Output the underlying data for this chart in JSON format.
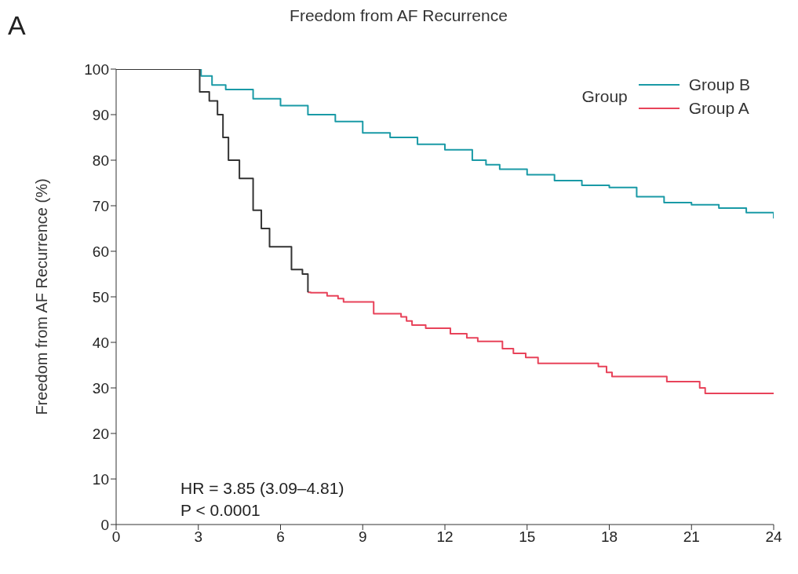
{
  "chart_data": {
    "type": "step",
    "title": "Freedom from AF Recurrence",
    "ylabel": "Freedom from AF Recurrence (%)",
    "legend_title": "Group",
    "legend": "top right",
    "grid": false,
    "marker": "none",
    "line_style": "solid",
    "xlim": [
      0,
      24
    ],
    "xticks": [
      0,
      3,
      6,
      9,
      12,
      15,
      18,
      21,
      24
    ],
    "ylim": [
      0,
      100
    ],
    "yticks": [
      0,
      10,
      20,
      30,
      40,
      50,
      60,
      70,
      80,
      90,
      100
    ],
    "annotations": [
      "A",
      "HR = 3.85 (3.09–4.81)",
      "P < 0.0001"
    ],
    "series": [
      {
        "name": "Group B",
        "color": "#1a9aa6",
        "x": [
          3,
          3.1,
          3.5,
          4,
          5,
          6,
          7,
          8,
          9,
          10,
          11,
          12,
          13,
          13.5,
          14,
          15,
          16,
          17,
          18,
          19,
          20,
          21,
          22,
          23,
          24
        ],
        "values": [
          100,
          98.5,
          96.5,
          95.5,
          93.5,
          92,
          90,
          88.5,
          86,
          85,
          83.5,
          82.3,
          80,
          79,
          78,
          76.8,
          75.5,
          74.5,
          74,
          72,
          70.7,
          70.2,
          69.5,
          68.5,
          67.2
        ]
      },
      {
        "name": "Group A",
        "color": "#e8435a",
        "x": [
          7,
          7.1,
          7.7,
          8.1,
          8.3,
          9.4,
          10.4,
          10.6,
          10.8,
          11.3,
          12.2,
          12.8,
          13.2,
          14.1,
          14.5,
          14.95,
          15.4,
          17.6,
          17.9,
          18.1,
          20.1,
          21.3,
          21.5,
          24
        ],
        "values": [
          51,
          50.9,
          50.2,
          49.6,
          48.9,
          46.3,
          45.6,
          44.7,
          43.8,
          43.1,
          41.9,
          41,
          40.2,
          38.6,
          37.6,
          36.7,
          35.4,
          34.7,
          33.4,
          32.5,
          31.4,
          30,
          28.8,
          28.8
        ]
      },
      {
        "color": "#333333",
        "x": [
          0,
          3,
          3.05,
          3.4,
          3.7,
          3.9,
          4.1,
          4.5,
          5,
          5.3,
          5.6,
          6.3,
          6.4,
          6.8,
          7
        ],
        "values": [
          100,
          100,
          95,
          93,
          90,
          85,
          80,
          76,
          69,
          65,
          61,
          61,
          56,
          55,
          51
        ]
      }
    ]
  }
}
